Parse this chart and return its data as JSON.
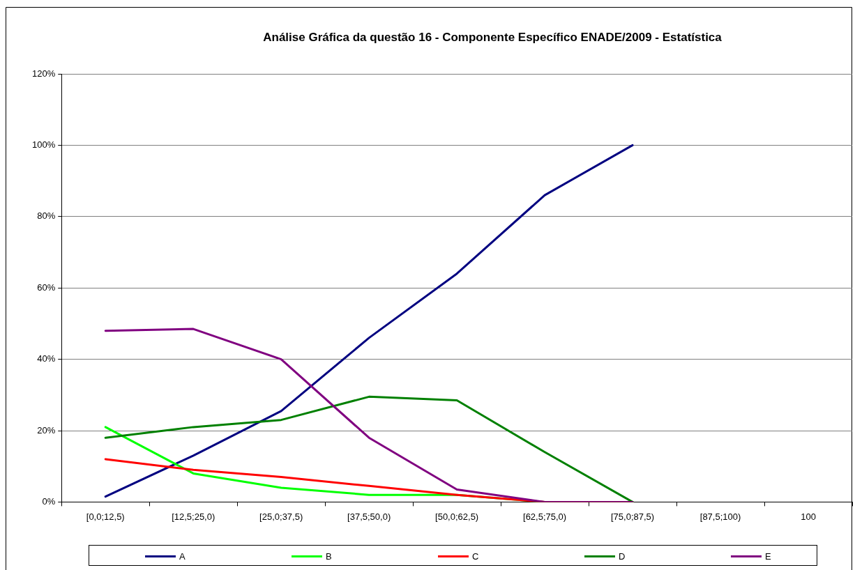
{
  "chart_data": {
    "type": "line",
    "title": "Análise Gráfica da questão 16 - Componente Específico ENADE/2009 - Estatística",
    "categories": [
      "[0,0;12,5)",
      "[12,5;25,0)",
      "[25,0;37,5)",
      "[37,5;50,0)",
      "[50,0;62,5)",
      "[62,5;75,0)",
      "[75,0;87,5)",
      "[87,5;100)",
      "100"
    ],
    "series": [
      {
        "name": "A",
        "color": "#000080",
        "values": [
          1.5,
          13,
          25.5,
          46,
          64,
          86,
          100,
          null,
          null
        ]
      },
      {
        "name": "B",
        "color": "#00ff00",
        "values": [
          21,
          8,
          4,
          2,
          2,
          0,
          0,
          null,
          null
        ]
      },
      {
        "name": "C",
        "color": "#ff0000",
        "values": [
          12,
          9,
          7,
          4.5,
          2,
          0,
          0,
          null,
          null
        ]
      },
      {
        "name": "D",
        "color": "#008000",
        "values": [
          18,
          21,
          23,
          29.5,
          28.5,
          14,
          0,
          null,
          null
        ]
      },
      {
        "name": "E",
        "color": "#800080",
        "values": [
          48,
          48.5,
          40,
          18,
          3.5,
          0,
          0,
          null,
          null
        ]
      }
    ],
    "ylim": [
      0,
      120
    ],
    "yticks": [
      {
        "value": 0,
        "label": "0%"
      },
      {
        "value": 20,
        "label": "20%"
      },
      {
        "value": 40,
        "label": "40%"
      },
      {
        "value": 60,
        "label": "60%"
      },
      {
        "value": 80,
        "label": "80%"
      },
      {
        "value": 100,
        "label": "100%"
      },
      {
        "value": 120,
        "label": "120%"
      }
    ],
    "grid": "y",
    "legend": "bottom",
    "marker": "none",
    "line_style": "solid"
  }
}
